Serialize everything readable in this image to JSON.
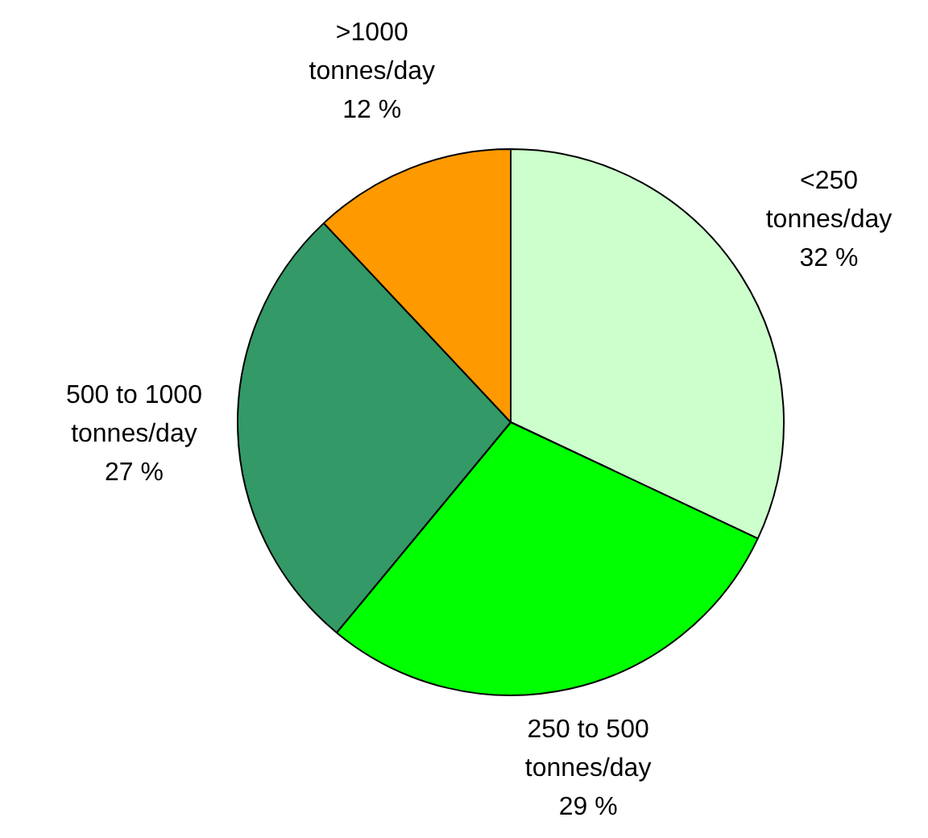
{
  "chart_data": {
    "type": "pie",
    "categories": [
      "<250 tonnes/day",
      "250 to 500 tonnes/day",
      "500 to 1000 tonnes/day",
      ">1000 tonnes/day"
    ],
    "values": [
      32,
      29,
      27,
      12
    ],
    "value_labels": [
      "32 %",
      "29 %",
      "27 %",
      "12 %"
    ],
    "colors": [
      "#ccffcc",
      "#00ff00",
      "#339966",
      "#ff9900"
    ],
    "legend": false
  }
}
